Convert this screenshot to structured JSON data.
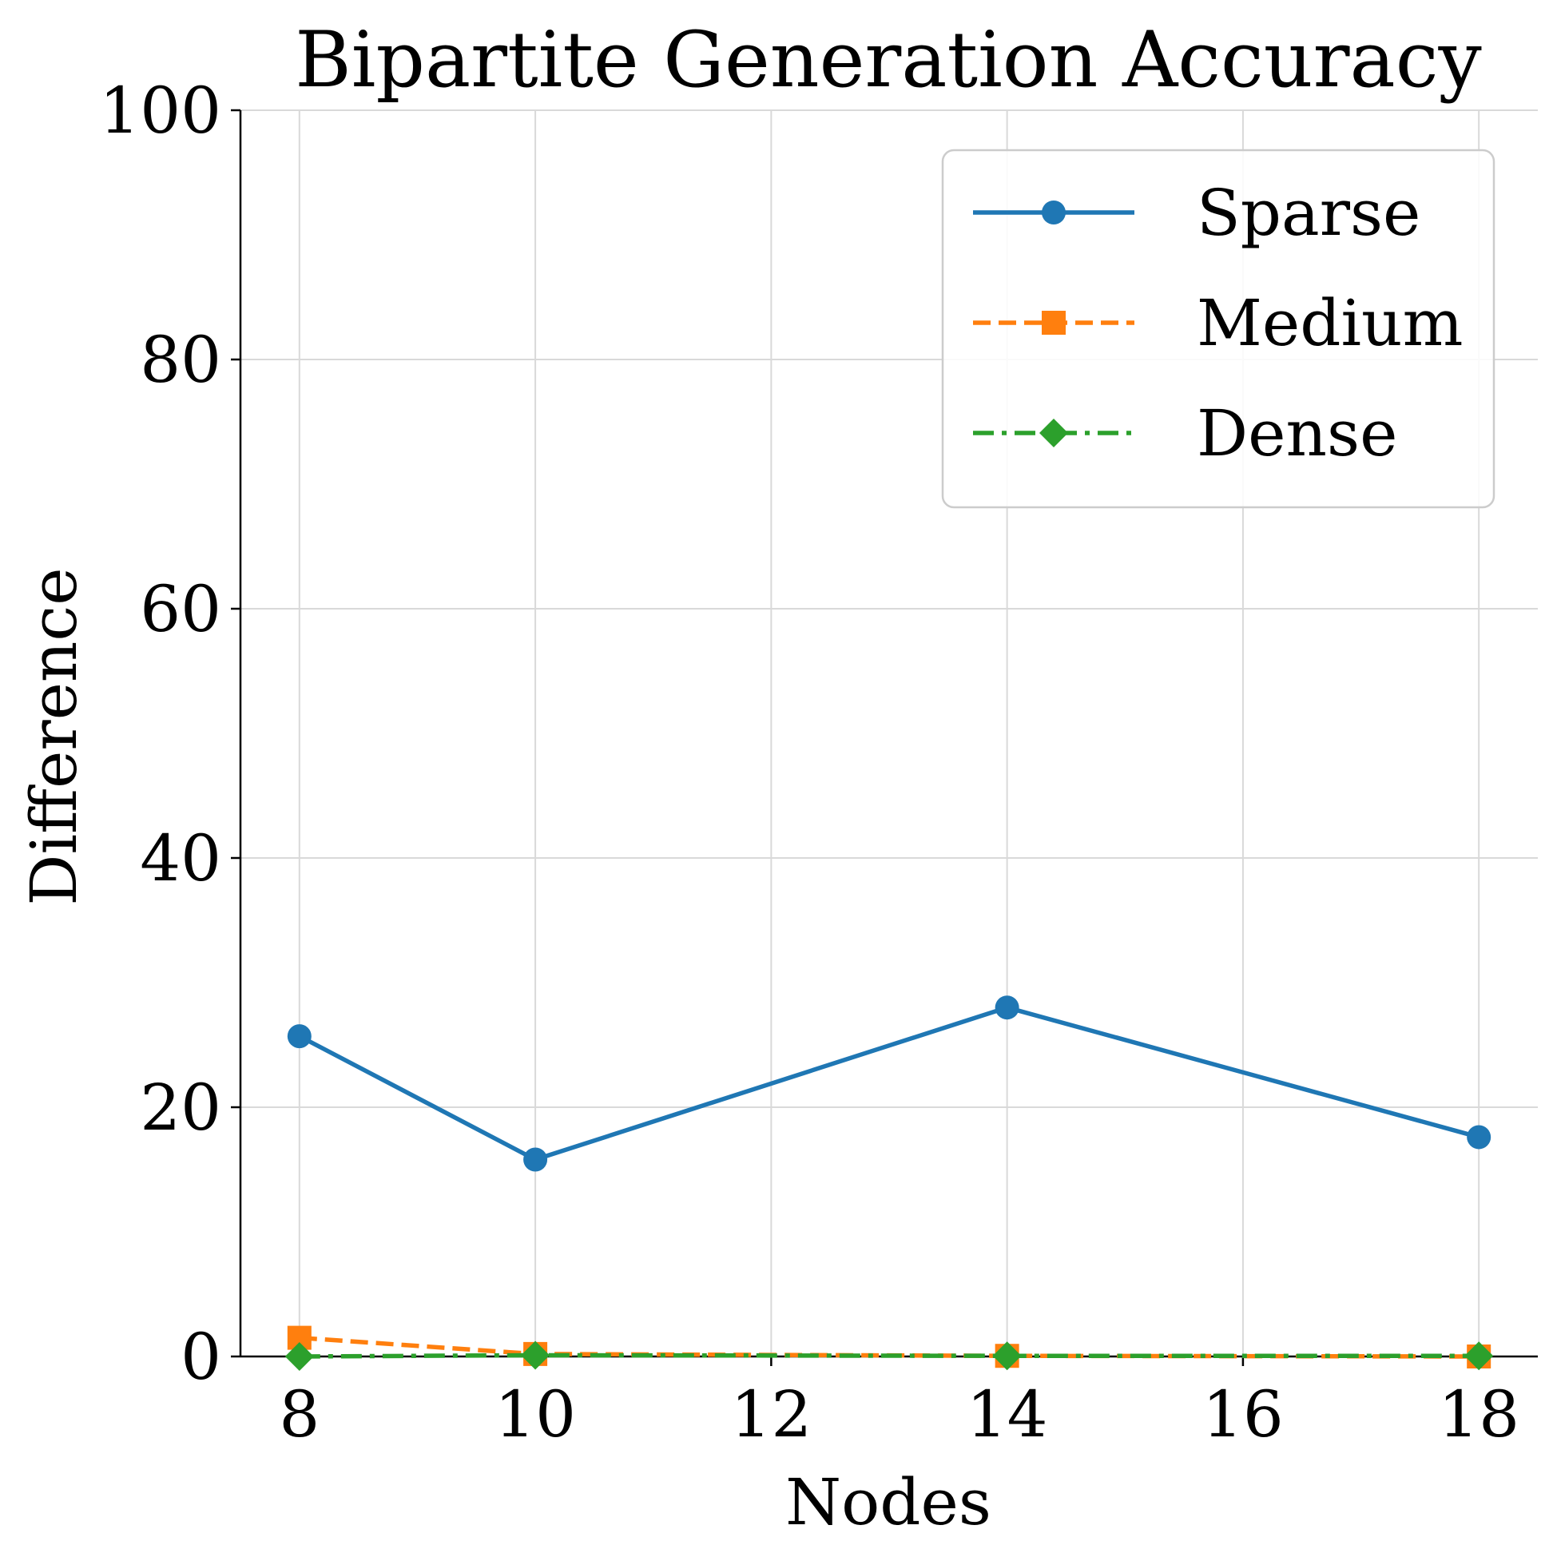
{
  "chart_data": {
    "type": "line",
    "title": "Bipartite Generation Accuracy",
    "xlabel": "Nodes",
    "ylabel": "Difference",
    "x": [
      8,
      10,
      14,
      18
    ],
    "xlim": [
      7.5,
      18.5
    ],
    "ylim": [
      0,
      100
    ],
    "xticks": [
      8,
      10,
      12,
      14,
      16,
      18
    ],
    "yticks": [
      0,
      20,
      40,
      60,
      80,
      100
    ],
    "grid": true,
    "legend_position": "top-right",
    "series": [
      {
        "name": "Sparse",
        "values": [
          25.7,
          15.8,
          28.0,
          17.6
        ],
        "color": "#1f77b4",
        "marker": "circle",
        "line_style": "solid"
      },
      {
        "name": "Medium",
        "values": [
          1.5,
          0.2,
          0.05,
          0.0
        ],
        "color": "#ff7f0e",
        "marker": "square",
        "line_style": "dashed"
      },
      {
        "name": "Dense",
        "values": [
          0.0,
          0.1,
          0.05,
          0.05
        ],
        "color": "#2ca02c",
        "marker": "diamond",
        "line_style": "dashdot"
      }
    ]
  }
}
